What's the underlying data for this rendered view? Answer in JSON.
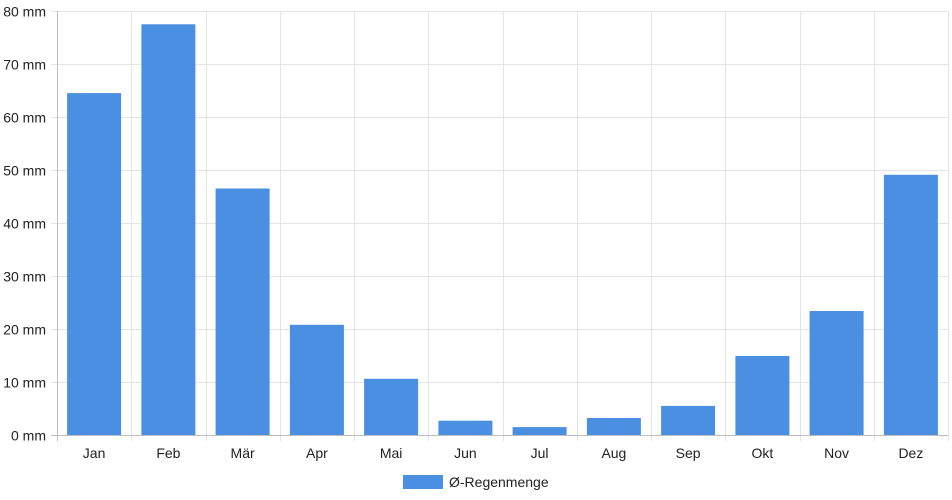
{
  "chart_data": {
    "type": "bar",
    "categories": [
      "Jan",
      "Feb",
      "Mär",
      "Apr",
      "Mai",
      "Jun",
      "Jul",
      "Aug",
      "Sep",
      "Okt",
      "Nov",
      "Dez"
    ],
    "series": [
      {
        "name": "Ø-Regenmenge",
        "values": [
          64.5,
          77.5,
          46.5,
          20.8,
          10.6,
          2.7,
          1.5,
          3.2,
          5.5,
          14.9,
          23.4,
          49.1
        ],
        "color": "#4a8fe2"
      }
    ],
    "y_unit": "mm",
    "ylim": [
      0,
      80
    ],
    "y_ticks": [
      0,
      10,
      20,
      30,
      40,
      50,
      60,
      70,
      80
    ],
    "y_tick_labels": [
      "0 mm",
      "10 mm",
      "20 mm",
      "30 mm",
      "40 mm",
      "50 mm",
      "60 mm",
      "70 mm",
      "80 mm"
    ],
    "grid": true,
    "legend_position": "bottom",
    "title": "",
    "xlabel": "",
    "ylabel": ""
  }
}
